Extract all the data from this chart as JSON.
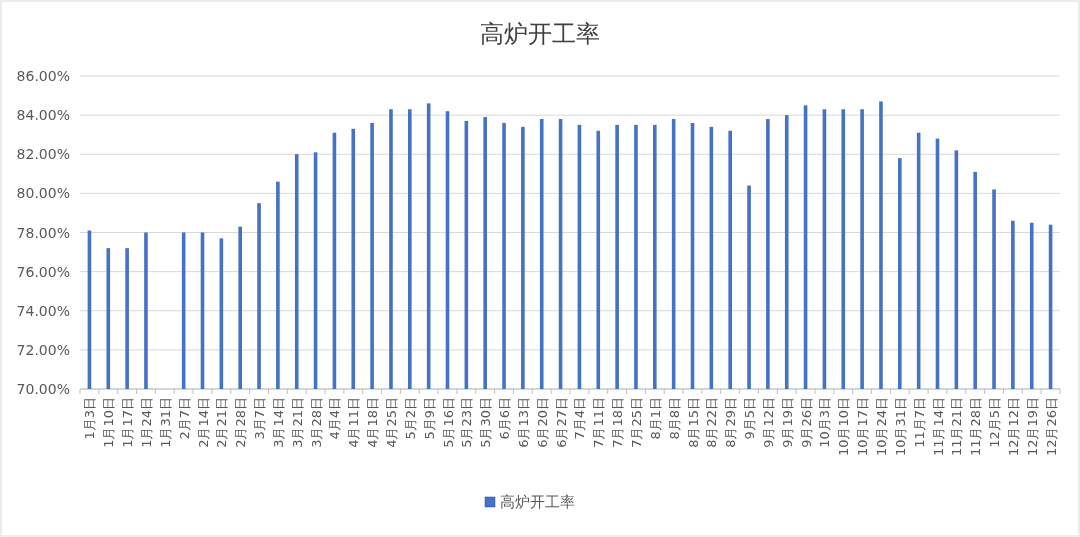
{
  "chart_data": {
    "type": "bar",
    "title": "高炉开工率",
    "categories": [
      "1月3日",
      "1月10日",
      "1月17日",
      "1月24日",
      "1月31日",
      "2月7日",
      "2月14日",
      "2月21日",
      "2月28日",
      "3月7日",
      "3月14日",
      "3月21日",
      "3月28日",
      "4月4日",
      "4月11日",
      "4月18日",
      "4月25日",
      "5月2日",
      "5月9日",
      "5月16日",
      "5月23日",
      "5月30日",
      "6月6日",
      "6月13日",
      "6月20日",
      "6月27日",
      "7月4日",
      "7月11日",
      "7月18日",
      "7月25日",
      "8月1日",
      "8月8日",
      "8月15日",
      "8月22日",
      "8月29日",
      "9月5日",
      "9月12日",
      "9月19日",
      "9月26日",
      "10月3日",
      "10月10日",
      "10月17日",
      "10月24日",
      "10月31日",
      "11月7日",
      "11月14日",
      "11月21日",
      "11月28日",
      "12月5日",
      "12月12日",
      "12月19日",
      "12月26日"
    ],
    "series": [
      {
        "name": "高炉开工率",
        "color": "#4472c4",
        "values": [
          78.1,
          77.2,
          77.2,
          78.0,
          null,
          78.0,
          78.0,
          77.7,
          78.3,
          79.5,
          80.6,
          82.0,
          82.1,
          83.1,
          83.3,
          83.6,
          84.3,
          84.3,
          84.6,
          84.2,
          83.7,
          83.9,
          83.6,
          83.4,
          83.8,
          83.8,
          83.5,
          83.2,
          83.5,
          83.5,
          83.5,
          83.8,
          83.6,
          83.4,
          83.2,
          80.4,
          83.8,
          84.0,
          84.5,
          84.3,
          84.3,
          84.3,
          84.7,
          81.8,
          83.1,
          82.8,
          82.2,
          81.1,
          80.2,
          78.6,
          78.5,
          78.4
        ]
      }
    ],
    "ylim": [
      70,
      86
    ],
    "yticks": [
      {
        "value": 70,
        "label": "70.00%"
      },
      {
        "value": 72,
        "label": "72.00%"
      },
      {
        "value": 74,
        "label": "74.00%"
      },
      {
        "value": 76,
        "label": "76.00%"
      },
      {
        "value": 78,
        "label": "78.00%"
      },
      {
        "value": 80,
        "label": "80.00%"
      },
      {
        "value": 82,
        "label": "82.00%"
      },
      {
        "value": 84,
        "label": "84.00%"
      },
      {
        "value": 86,
        "label": "86.00%"
      }
    ],
    "grid": "y",
    "legend": "bottom"
  }
}
